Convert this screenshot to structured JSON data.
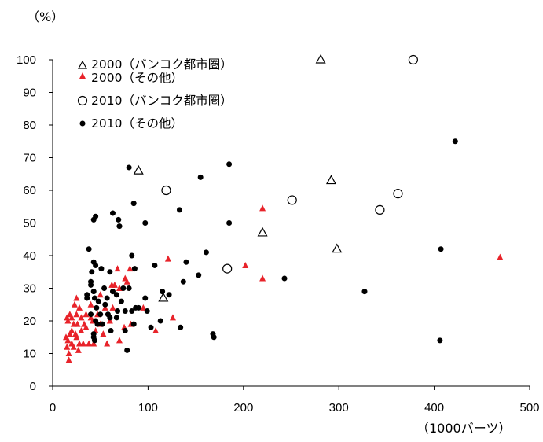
{
  "chart_data": {
    "type": "scatter",
    "y_unit_label": "（%）",
    "x_unit_label": "（1000バーツ）",
    "xlim": [
      0,
      500
    ],
    "ylim": [
      0,
      100
    ],
    "x_ticks": [
      0,
      100,
      200,
      300,
      400,
      500
    ],
    "y_ticks": [
      0,
      10,
      20,
      30,
      40,
      50,
      60,
      70,
      80,
      90,
      100
    ],
    "grid": false,
    "legend_position": "top-left",
    "series": [
      {
        "name": "2000（バンコク都市圏）",
        "marker": "triangle-open",
        "color": "#000000",
        "points": [
          [
            281,
            100
          ],
          [
            90,
            66
          ],
          [
            292,
            63
          ],
          [
            220,
            47
          ],
          [
            298,
            42
          ],
          [
            116,
            27
          ]
        ]
      },
      {
        "name": "2000（その他）",
        "marker": "triangle-filled",
        "color": "#e8232a",
        "points": [
          [
            469,
            39.5
          ],
          [
            220,
            54.5
          ],
          [
            220,
            33
          ],
          [
            202,
            37
          ],
          [
            121,
            39
          ],
          [
            126,
            21
          ],
          [
            108,
            17
          ],
          [
            95,
            24
          ],
          [
            81,
            36
          ],
          [
            78,
            32
          ],
          [
            82,
            19
          ],
          [
            76,
            33
          ],
          [
            68,
            36
          ],
          [
            70,
            30
          ],
          [
            65,
            31
          ],
          [
            62,
            31
          ],
          [
            60,
            20
          ],
          [
            55,
            24
          ],
          [
            50,
            28
          ],
          [
            50,
            19
          ],
          [
            45,
            17
          ],
          [
            43,
            13
          ],
          [
            40,
            25
          ],
          [
            40,
            21
          ],
          [
            38,
            13
          ],
          [
            35,
            22
          ],
          [
            33,
            19
          ],
          [
            32,
            13
          ],
          [
            30,
            21
          ],
          [
            30,
            17
          ],
          [
            28,
            24
          ],
          [
            25,
            22
          ],
          [
            25,
            27
          ],
          [
            25,
            15
          ],
          [
            23,
            25
          ],
          [
            22,
            19
          ],
          [
            22,
            12
          ],
          [
            20,
            21
          ],
          [
            20,
            13
          ],
          [
            20,
            17
          ],
          [
            18,
            22
          ],
          [
            18,
            16
          ],
          [
            17,
            10
          ],
          [
            16,
            20
          ],
          [
            16,
            14
          ],
          [
            15,
            12
          ],
          [
            15,
            21
          ],
          [
            24,
            16
          ],
          [
            26,
            19
          ],
          [
            27,
            11
          ],
          [
            17,
            8
          ],
          [
            14,
            15
          ],
          [
            28,
            13
          ],
          [
            35,
            18
          ],
          [
            42,
            20
          ],
          [
            47,
            22
          ],
          [
            53,
            16
          ],
          [
            57,
            13
          ],
          [
            63,
            24
          ],
          [
            70,
            14
          ],
          [
            75,
            18
          ]
        ]
      },
      {
        "name": "2010（バンコク都市圏）",
        "marker": "circle-open",
        "color": "#000000",
        "points": [
          [
            378,
            100
          ],
          [
            119,
            60
          ],
          [
            362,
            59
          ],
          [
            251,
            57
          ],
          [
            343,
            54
          ],
          [
            183,
            36
          ]
        ]
      },
      {
        "name": "2010（その他）",
        "marker": "circle-filled",
        "color": "#000000",
        "points": [
          [
            422,
            75
          ],
          [
            185,
            68
          ],
          [
            80,
            67
          ],
          [
            155,
            64
          ],
          [
            85,
            56
          ],
          [
            133,
            54
          ],
          [
            63,
            53
          ],
          [
            45,
            52
          ],
          [
            69,
            51
          ],
          [
            43,
            51
          ],
          [
            185,
            50
          ],
          [
            97,
            50
          ],
          [
            70,
            49
          ],
          [
            407,
            42
          ],
          [
            83,
            40
          ],
          [
            161,
            41
          ],
          [
            140,
            38
          ],
          [
            107,
            37
          ],
          [
            45,
            37
          ],
          [
            43,
            38
          ],
          [
            41,
            35
          ],
          [
            38,
            42
          ],
          [
            153,
            34
          ],
          [
            243,
            33
          ],
          [
            86,
            36
          ],
          [
            51,
            36
          ],
          [
            60,
            35
          ],
          [
            137,
            32
          ],
          [
            40,
            32
          ],
          [
            74,
            30
          ],
          [
            115,
            29
          ],
          [
            54,
            30
          ],
          [
            327,
            29
          ],
          [
            43,
            29
          ],
          [
            122,
            28
          ],
          [
            67,
            28
          ],
          [
            97,
            27
          ],
          [
            44,
            27
          ],
          [
            72,
            26
          ],
          [
            36,
            27
          ],
          [
            55,
            25
          ],
          [
            87,
            24
          ],
          [
            46,
            24
          ],
          [
            68,
            23
          ],
          [
            76,
            23
          ],
          [
            83,
            23
          ],
          [
            50,
            22
          ],
          [
            40,
            22
          ],
          [
            60,
            21
          ],
          [
            113,
            20
          ],
          [
            85,
            19
          ],
          [
            47,
            19
          ],
          [
            67,
            21
          ],
          [
            103,
            18
          ],
          [
            134,
            18
          ],
          [
            76,
            17
          ],
          [
            61,
            17
          ],
          [
            43,
            16
          ],
          [
            168,
            16
          ],
          [
            169,
            15
          ],
          [
            43,
            15
          ],
          [
            44,
            14
          ],
          [
            78,
            11
          ],
          [
            406,
            14
          ],
          [
            40,
            31
          ],
          [
            57,
            27
          ],
          [
            48,
            26
          ],
          [
            45,
            20
          ],
          [
            63,
            29
          ],
          [
            80,
            30
          ],
          [
            90,
            24
          ],
          [
            99,
            23
          ],
          [
            52,
            19
          ],
          [
            36,
            28
          ],
          [
            58,
            22
          ]
        ]
      }
    ]
  }
}
